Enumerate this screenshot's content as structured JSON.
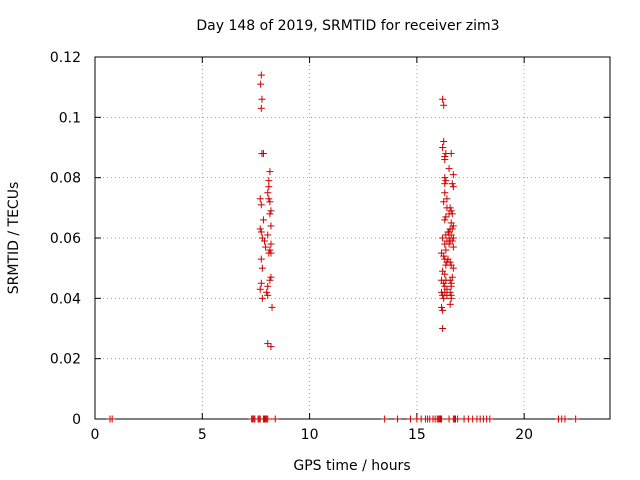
{
  "chart_data": {
    "type": "scatter",
    "title": "Day 148 of 2019, SRMTID for receiver zim3",
    "xlabel": "GPS time / hours",
    "ylabel": "SRMTID / TECUs",
    "xlim": [
      0,
      24
    ],
    "ylim": [
      0,
      0.12
    ],
    "grid": true,
    "x_ticks": [
      0,
      5,
      10,
      15,
      20
    ],
    "x_tick_labels": [
      "0",
      "5",
      "10",
      "15",
      "20"
    ],
    "y_ticks": [
      0,
      0.02,
      0.04,
      0.06,
      0.08,
      0.1,
      0.12
    ],
    "y_tick_labels": [
      "0",
      "0.02",
      "0.04",
      "0.06",
      "0.08",
      "0.1",
      "0.12"
    ],
    "marker": "+",
    "color": "#cc0000",
    "series": [
      {
        "name": "SRMTID",
        "points": [
          [
            7.75,
            0.114
          ],
          [
            7.72,
            0.111
          ],
          [
            7.78,
            0.106
          ],
          [
            7.75,
            0.103
          ],
          [
            7.78,
            0.088
          ],
          [
            7.85,
            0.088
          ],
          [
            8.15,
            0.082
          ],
          [
            8.1,
            0.079
          ],
          [
            8.1,
            0.077
          ],
          [
            8.05,
            0.075
          ],
          [
            7.7,
            0.073
          ],
          [
            8.1,
            0.073
          ],
          [
            8.15,
            0.072
          ],
          [
            7.75,
            0.071
          ],
          [
            8.2,
            0.069
          ],
          [
            8.15,
            0.068
          ],
          [
            7.85,
            0.066
          ],
          [
            8.2,
            0.064
          ],
          [
            7.7,
            0.063
          ],
          [
            7.75,
            0.062
          ],
          [
            8.05,
            0.061
          ],
          [
            7.8,
            0.06
          ],
          [
            7.9,
            0.059
          ],
          [
            8.2,
            0.058
          ],
          [
            7.95,
            0.057
          ],
          [
            8.15,
            0.056
          ],
          [
            8.1,
            0.055
          ],
          [
            8.2,
            0.055
          ],
          [
            7.75,
            0.053
          ],
          [
            7.8,
            0.05
          ],
          [
            8.2,
            0.047
          ],
          [
            8.15,
            0.046
          ],
          [
            7.75,
            0.045
          ],
          [
            8.05,
            0.044
          ],
          [
            7.7,
            0.043
          ],
          [
            8.0,
            0.042
          ],
          [
            8.05,
            0.041
          ],
          [
            7.8,
            0.04
          ],
          [
            8.25,
            0.037
          ],
          [
            8.05,
            0.025
          ],
          [
            8.2,
            0.024
          ],
          [
            16.2,
            0.106
          ],
          [
            16.25,
            0.104
          ],
          [
            16.25,
            0.092
          ],
          [
            16.2,
            0.09
          ],
          [
            16.35,
            0.088
          ],
          [
            16.6,
            0.088
          ],
          [
            16.3,
            0.087
          ],
          [
            16.3,
            0.086
          ],
          [
            16.5,
            0.083
          ],
          [
            16.7,
            0.081
          ],
          [
            16.3,
            0.08
          ],
          [
            16.35,
            0.079
          ],
          [
            16.3,
            0.078
          ],
          [
            16.65,
            0.078
          ],
          [
            16.7,
            0.077
          ],
          [
            16.3,
            0.075
          ],
          [
            16.4,
            0.073
          ],
          [
            16.25,
            0.072
          ],
          [
            16.4,
            0.07
          ],
          [
            16.55,
            0.07
          ],
          [
            16.6,
            0.069
          ],
          [
            16.5,
            0.068
          ],
          [
            16.65,
            0.068
          ],
          [
            16.35,
            0.067
          ],
          [
            16.3,
            0.066
          ],
          [
            16.6,
            0.065
          ],
          [
            16.7,
            0.064
          ],
          [
            16.55,
            0.063
          ],
          [
            16.65,
            0.063
          ],
          [
            16.45,
            0.062
          ],
          [
            16.5,
            0.062
          ],
          [
            16.35,
            0.061
          ],
          [
            16.6,
            0.061
          ],
          [
            16.2,
            0.06
          ],
          [
            16.5,
            0.06
          ],
          [
            16.7,
            0.06
          ],
          [
            16.4,
            0.059
          ],
          [
            16.55,
            0.059
          ],
          [
            16.65,
            0.059
          ],
          [
            16.3,
            0.058
          ],
          [
            16.5,
            0.058
          ],
          [
            16.7,
            0.057
          ],
          [
            16.35,
            0.056
          ],
          [
            16.15,
            0.055
          ],
          [
            16.25,
            0.054
          ],
          [
            16.3,
            0.053
          ],
          [
            16.45,
            0.053
          ],
          [
            16.4,
            0.052
          ],
          [
            16.55,
            0.052
          ],
          [
            16.35,
            0.051
          ],
          [
            16.6,
            0.051
          ],
          [
            16.7,
            0.05
          ],
          [
            16.2,
            0.049
          ],
          [
            16.3,
            0.048
          ],
          [
            16.65,
            0.047
          ],
          [
            16.15,
            0.046
          ],
          [
            16.35,
            0.046
          ],
          [
            16.55,
            0.046
          ],
          [
            16.25,
            0.045
          ],
          [
            16.6,
            0.045
          ],
          [
            16.3,
            0.044
          ],
          [
            16.6,
            0.044
          ],
          [
            16.4,
            0.043
          ],
          [
            16.15,
            0.042
          ],
          [
            16.3,
            0.042
          ],
          [
            16.55,
            0.042
          ],
          [
            16.2,
            0.041
          ],
          [
            16.4,
            0.041
          ],
          [
            16.6,
            0.041
          ],
          [
            16.25,
            0.04
          ],
          [
            16.6,
            0.04
          ],
          [
            16.55,
            0.038
          ],
          [
            16.15,
            0.037
          ],
          [
            16.2,
            0.036
          ],
          [
            16.2,
            0.03
          ],
          [
            0.7,
            0
          ],
          [
            0.8,
            0
          ],
          [
            7.3,
            0
          ],
          [
            7.35,
            0
          ],
          [
            7.4,
            0
          ],
          [
            7.45,
            0
          ],
          [
            7.6,
            0
          ],
          [
            7.65,
            0
          ],
          [
            7.7,
            0
          ],
          [
            7.85,
            0
          ],
          [
            7.9,
            0
          ],
          [
            7.95,
            0
          ],
          [
            8.0,
            0
          ],
          [
            8.05,
            0
          ],
          [
            8.4,
            0
          ],
          [
            13.5,
            0
          ],
          [
            14.1,
            0
          ],
          [
            14.7,
            0
          ],
          [
            15.0,
            0
          ],
          [
            15.2,
            0
          ],
          [
            15.4,
            0
          ],
          [
            15.5,
            0
          ],
          [
            15.6,
            0
          ],
          [
            15.75,
            0
          ],
          [
            15.85,
            0
          ],
          [
            15.95,
            0
          ],
          [
            16.0,
            0
          ],
          [
            16.05,
            0
          ],
          [
            16.1,
            0
          ],
          [
            16.15,
            0
          ],
          [
            16.5,
            0
          ],
          [
            16.7,
            0
          ],
          [
            16.75,
            0
          ],
          [
            16.8,
            0
          ],
          [
            16.9,
            0
          ],
          [
            17.2,
            0
          ],
          [
            17.4,
            0
          ],
          [
            17.6,
            0
          ],
          [
            17.8,
            0
          ],
          [
            17.95,
            0
          ],
          [
            18.1,
            0
          ],
          [
            18.25,
            0
          ],
          [
            18.4,
            0
          ],
          [
            21.6,
            0
          ],
          [
            21.75,
            0
          ],
          [
            21.9,
            0
          ],
          [
            22.4,
            0
          ]
        ]
      }
    ]
  }
}
